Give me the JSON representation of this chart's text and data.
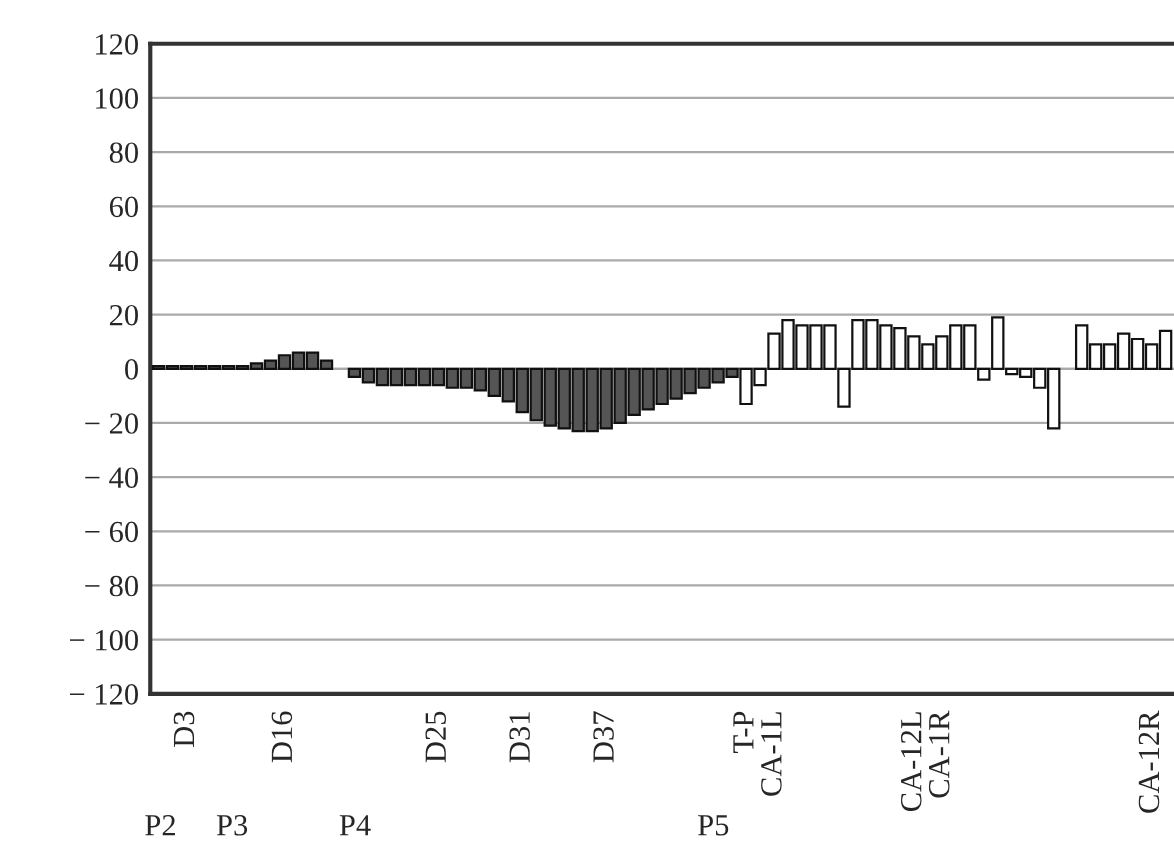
{
  "chart_data": {
    "type": "bar",
    "categories": [
      null,
      null,
      "D3",
      null,
      null,
      null,
      null,
      null,
      null,
      "D16",
      null,
      null,
      null,
      null,
      null,
      null,
      null,
      null,
      null,
      null,
      "D25",
      null,
      null,
      null,
      null,
      null,
      "D31",
      null,
      null,
      null,
      null,
      null,
      "D37",
      null,
      null,
      null,
      null,
      null,
      null,
      null,
      null,
      null,
      "T-P",
      null,
      "CA-1L",
      null,
      null,
      null,
      null,
      null,
      null,
      null,
      null,
      null,
      "CA-12L",
      null,
      "CA-1R",
      null,
      null,
      null,
      null,
      null,
      null,
      null,
      null,
      null,
      null,
      null,
      null,
      null,
      null,
      "CA-12R",
      null
    ],
    "values": [
      1,
      1,
      1,
      1,
      1,
      1,
      1,
      2,
      3,
      5,
      6,
      6,
      3,
      null,
      -3,
      -5,
      -6,
      -6,
      -6,
      -6,
      -6,
      -7,
      -7,
      -8,
      -10,
      -12,
      -16,
      -19,
      -21,
      -22,
      -23,
      -23,
      -22,
      -20,
      -17,
      -15,
      -13,
      -11,
      -9,
      -7,
      -5,
      -3,
      -13,
      -6,
      13,
      18,
      16,
      16,
      16,
      -14,
      18,
      18,
      16,
      15,
      12,
      9,
      12,
      16,
      16,
      -4,
      19,
      -2,
      -3,
      -7,
      -22,
      null,
      16,
      9,
      9,
      13,
      11,
      9,
      14
    ],
    "colors": [
      "#555555",
      "#555555",
      "#555555",
      "#555555",
      "#555555",
      "#555555",
      "#555555",
      "#555555",
      "#555555",
      "#555555",
      "#555555",
      "#555555",
      "#555555",
      "#555555",
      "#555555",
      "#555555",
      "#555555",
      "#555555",
      "#555555",
      "#555555",
      "#555555",
      "#555555",
      "#555555",
      "#555555",
      "#555555",
      "#555555",
      "#555555",
      "#555555",
      "#555555",
      "#555555",
      "#555555",
      "#555555",
      "#555555",
      "#555555",
      "#555555",
      "#555555",
      "#555555",
      "#555555",
      "#555555",
      "#555555",
      "#555555",
      "#555555",
      "#ffffff",
      "#ffffff",
      "#ffffff",
      "#ffffff",
      "#ffffff",
      "#ffffff",
      "#ffffff",
      "#ffffff",
      "#ffffff",
      "#ffffff",
      "#ffffff",
      "#ffffff",
      "#ffffff",
      "#ffffff",
      "#ffffff",
      "#ffffff",
      "#ffffff",
      "#ffffff",
      "#ffffff",
      "#ffffff",
      "#ffffff",
      "#ffffff",
      "#ffffff",
      "#ffffff",
      "#ffffff",
      "#ffffff",
      "#ffffff",
      "#ffffff",
      "#ffffff",
      "#ffffff",
      "#ffffff"
    ],
    "ylim": [
      -120,
      120
    ],
    "yticks": [
      120,
      100,
      80,
      60,
      40,
      20,
      0,
      {
        "value": -20,
        "label": "− 20"
      },
      {
        "value": -40,
        "label": "− 40"
      },
      {
        "value": -60,
        "label": "− 60"
      },
      {
        "value": -80,
        "label": "− 80"
      },
      {
        "value": -100,
        "label": "− 100"
      },
      {
        "value": -120,
        "label": "− 120"
      }
    ],
    "grid": "y",
    "annotations": [
      "P2",
      "P3",
      "P4",
      "P5"
    ]
  }
}
